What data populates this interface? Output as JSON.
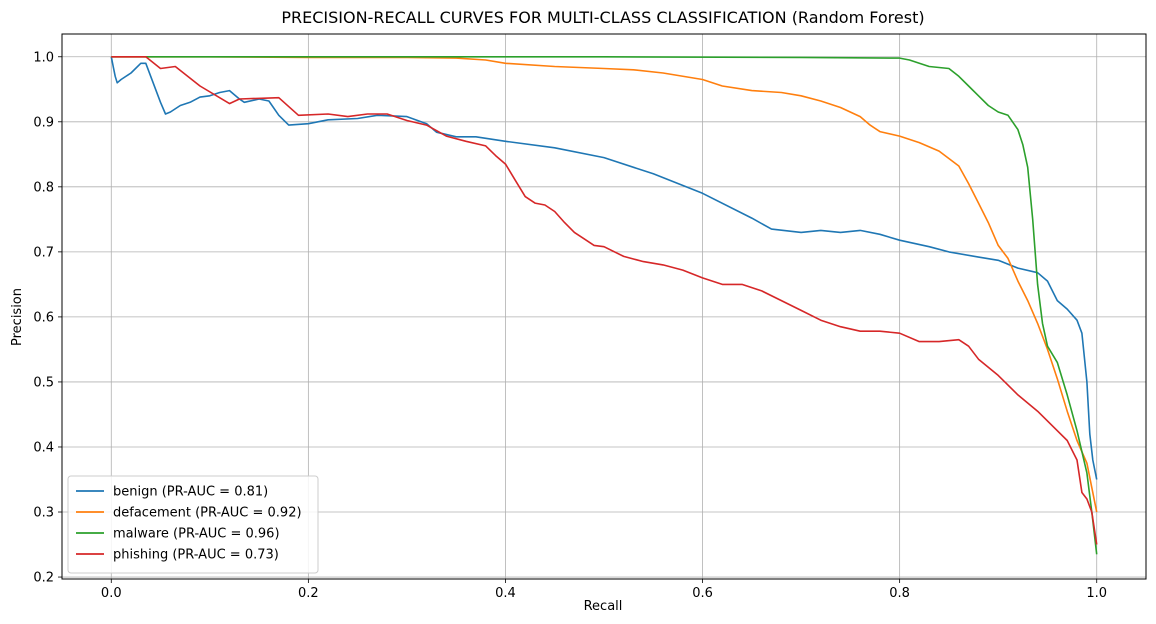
{
  "chart_data": {
    "type": "line",
    "title": "PRECISION-RECALL CURVES FOR MULTI-CLASS CLASSIFICATION (Random Forest)",
    "xlabel": "Recall",
    "ylabel": "Precision",
    "xlim": [
      -0.05,
      1.05
    ],
    "ylim": [
      0.197,
      1.035
    ],
    "xticks": [
      0.0,
      0.2,
      0.4,
      0.6,
      0.8,
      1.0
    ],
    "xtick_labels": [
      "0.0",
      "0.2",
      "0.4",
      "0.6",
      "0.8",
      "1.0"
    ],
    "yticks": [
      0.2,
      0.3,
      0.4,
      0.5,
      0.6,
      0.7,
      0.8,
      0.9,
      1.0
    ],
    "ytick_labels": [
      "0.2",
      "0.3",
      "0.4",
      "0.5",
      "0.6",
      "0.7",
      "0.8",
      "0.9",
      "1.0"
    ],
    "grid": true,
    "legend_position": "lower-left",
    "series": [
      {
        "name": "benign (PR-AUC = 0.81)",
        "color": "#1f77b4",
        "points": [
          [
            0.0,
            1.0
          ],
          [
            0.002,
            0.985
          ],
          [
            0.004,
            0.97
          ],
          [
            0.006,
            0.96
          ],
          [
            0.01,
            0.965
          ],
          [
            0.02,
            0.975
          ],
          [
            0.03,
            0.99
          ],
          [
            0.035,
            0.99
          ],
          [
            0.05,
            0.93
          ],
          [
            0.055,
            0.912
          ],
          [
            0.06,
            0.915
          ],
          [
            0.07,
            0.925
          ],
          [
            0.08,
            0.93
          ],
          [
            0.09,
            0.938
          ],
          [
            0.1,
            0.94
          ],
          [
            0.11,
            0.945
          ],
          [
            0.12,
            0.948
          ],
          [
            0.13,
            0.935
          ],
          [
            0.135,
            0.93
          ],
          [
            0.15,
            0.935
          ],
          [
            0.16,
            0.932
          ],
          [
            0.17,
            0.91
          ],
          [
            0.18,
            0.895
          ],
          [
            0.2,
            0.897
          ],
          [
            0.22,
            0.903
          ],
          [
            0.25,
            0.905
          ],
          [
            0.27,
            0.91
          ],
          [
            0.3,
            0.908
          ],
          [
            0.32,
            0.897
          ],
          [
            0.33,
            0.884
          ],
          [
            0.35,
            0.877
          ],
          [
            0.37,
            0.877
          ],
          [
            0.4,
            0.87
          ],
          [
            0.45,
            0.86
          ],
          [
            0.5,
            0.845
          ],
          [
            0.55,
            0.82
          ],
          [
            0.6,
            0.79
          ],
          [
            0.65,
            0.752
          ],
          [
            0.67,
            0.735
          ],
          [
            0.7,
            0.73
          ],
          [
            0.72,
            0.733
          ],
          [
            0.74,
            0.73
          ],
          [
            0.76,
            0.733
          ],
          [
            0.78,
            0.727
          ],
          [
            0.8,
            0.718
          ],
          [
            0.83,
            0.708
          ],
          [
            0.85,
            0.7
          ],
          [
            0.88,
            0.692
          ],
          [
            0.9,
            0.687
          ],
          [
            0.92,
            0.675
          ],
          [
            0.94,
            0.668
          ],
          [
            0.95,
            0.655
          ],
          [
            0.96,
            0.625
          ],
          [
            0.97,
            0.612
          ],
          [
            0.98,
            0.595
          ],
          [
            0.985,
            0.575
          ],
          [
            0.99,
            0.5
          ],
          [
            0.993,
            0.42
          ],
          [
            0.996,
            0.38
          ],
          [
            1.0,
            0.35
          ]
        ]
      },
      {
        "name": "defacement (PR-AUC = 0.92)",
        "color": "#ff7f0e",
        "points": [
          [
            0.0,
            1.0
          ],
          [
            0.1,
            1.0
          ],
          [
            0.2,
            0.999
          ],
          [
            0.3,
            0.999
          ],
          [
            0.35,
            0.998
          ],
          [
            0.38,
            0.995
          ],
          [
            0.4,
            0.99
          ],
          [
            0.45,
            0.985
          ],
          [
            0.5,
            0.982
          ],
          [
            0.53,
            0.98
          ],
          [
            0.56,
            0.975
          ],
          [
            0.6,
            0.965
          ],
          [
            0.62,
            0.955
          ],
          [
            0.65,
            0.948
          ],
          [
            0.68,
            0.945
          ],
          [
            0.7,
            0.94
          ],
          [
            0.72,
            0.932
          ],
          [
            0.74,
            0.922
          ],
          [
            0.76,
            0.908
          ],
          [
            0.77,
            0.895
          ],
          [
            0.78,
            0.885
          ],
          [
            0.8,
            0.878
          ],
          [
            0.82,
            0.868
          ],
          [
            0.84,
            0.855
          ],
          [
            0.86,
            0.832
          ],
          [
            0.87,
            0.805
          ],
          [
            0.88,
            0.775
          ],
          [
            0.89,
            0.745
          ],
          [
            0.9,
            0.71
          ],
          [
            0.91,
            0.69
          ],
          [
            0.92,
            0.655
          ],
          [
            0.93,
            0.625
          ],
          [
            0.94,
            0.59
          ],
          [
            0.95,
            0.55
          ],
          [
            0.96,
            0.505
          ],
          [
            0.97,
            0.455
          ],
          [
            0.98,
            0.41
          ],
          [
            0.99,
            0.375
          ],
          [
            1.0,
            0.3
          ]
        ]
      },
      {
        "name": "malware (PR-AUC = 0.96)",
        "color": "#2ca02c",
        "points": [
          [
            0.0,
            1.0
          ],
          [
            0.3,
            1.0
          ],
          [
            0.5,
            1.0
          ],
          [
            0.7,
            0.999
          ],
          [
            0.8,
            0.998
          ],
          [
            0.81,
            0.995
          ],
          [
            0.82,
            0.99
          ],
          [
            0.83,
            0.985
          ],
          [
            0.85,
            0.982
          ],
          [
            0.86,
            0.97
          ],
          [
            0.87,
            0.955
          ],
          [
            0.88,
            0.94
          ],
          [
            0.89,
            0.925
          ],
          [
            0.9,
            0.915
          ],
          [
            0.91,
            0.91
          ],
          [
            0.92,
            0.888
          ],
          [
            0.925,
            0.865
          ],
          [
            0.93,
            0.83
          ],
          [
            0.935,
            0.75
          ],
          [
            0.94,
            0.65
          ],
          [
            0.945,
            0.59
          ],
          [
            0.95,
            0.555
          ],
          [
            0.96,
            0.53
          ],
          [
            0.97,
            0.48
          ],
          [
            0.98,
            0.425
          ],
          [
            0.99,
            0.36
          ],
          [
            0.995,
            0.3
          ],
          [
            1.0,
            0.235
          ]
        ]
      },
      {
        "name": "phishing (PR-AUC = 0.73)",
        "color": "#d62728",
        "points": [
          [
            0.0,
            1.0
          ],
          [
            0.035,
            1.0
          ],
          [
            0.05,
            0.982
          ],
          [
            0.065,
            0.985
          ],
          [
            0.09,
            0.955
          ],
          [
            0.12,
            0.928
          ],
          [
            0.13,
            0.935
          ],
          [
            0.17,
            0.937
          ],
          [
            0.19,
            0.91
          ],
          [
            0.22,
            0.912
          ],
          [
            0.24,
            0.908
          ],
          [
            0.26,
            0.912
          ],
          [
            0.28,
            0.912
          ],
          [
            0.3,
            0.902
          ],
          [
            0.32,
            0.895
          ],
          [
            0.34,
            0.878
          ],
          [
            0.36,
            0.87
          ],
          [
            0.38,
            0.863
          ],
          [
            0.39,
            0.848
          ],
          [
            0.4,
            0.835
          ],
          [
            0.41,
            0.81
          ],
          [
            0.42,
            0.785
          ],
          [
            0.43,
            0.775
          ],
          [
            0.44,
            0.772
          ],
          [
            0.45,
            0.762
          ],
          [
            0.46,
            0.745
          ],
          [
            0.47,
            0.73
          ],
          [
            0.48,
            0.72
          ],
          [
            0.49,
            0.71
          ],
          [
            0.5,
            0.708
          ],
          [
            0.52,
            0.693
          ],
          [
            0.54,
            0.685
          ],
          [
            0.56,
            0.68
          ],
          [
            0.58,
            0.672
          ],
          [
            0.6,
            0.66
          ],
          [
            0.62,
            0.65
          ],
          [
            0.64,
            0.65
          ],
          [
            0.66,
            0.64
          ],
          [
            0.68,
            0.625
          ],
          [
            0.7,
            0.61
          ],
          [
            0.72,
            0.595
          ],
          [
            0.74,
            0.585
          ],
          [
            0.76,
            0.578
          ],
          [
            0.78,
            0.578
          ],
          [
            0.8,
            0.575
          ],
          [
            0.82,
            0.562
          ],
          [
            0.84,
            0.562
          ],
          [
            0.86,
            0.565
          ],
          [
            0.87,
            0.555
          ],
          [
            0.88,
            0.535
          ],
          [
            0.9,
            0.51
          ],
          [
            0.92,
            0.48
          ],
          [
            0.94,
            0.455
          ],
          [
            0.96,
            0.425
          ],
          [
            0.97,
            0.41
          ],
          [
            0.98,
            0.38
          ],
          [
            0.985,
            0.33
          ],
          [
            0.99,
            0.32
          ],
          [
            0.995,
            0.3
          ],
          [
            1.0,
            0.25
          ]
        ]
      }
    ]
  }
}
